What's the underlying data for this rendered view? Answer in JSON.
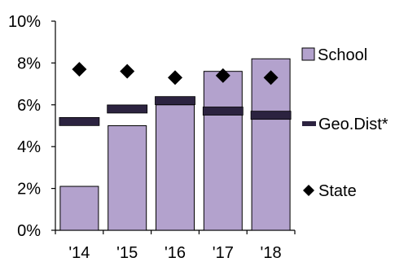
{
  "chart_data": {
    "type": "bar",
    "categories": [
      "'14",
      "'15",
      "'16",
      "'17",
      "'18"
    ],
    "ylim": [
      0,
      10
    ],
    "yticks": [
      "0%",
      "2%",
      "4%",
      "6%",
      "8%",
      "10%"
    ],
    "ytick_values": [
      0,
      2,
      4,
      6,
      8,
      10
    ],
    "grid": false,
    "legend_position": "right",
    "series": [
      {
        "name": "School",
        "kind": "bar",
        "color": "#b3a2cd",
        "values": [
          2.1,
          5.0,
          6.0,
          7.6,
          8.2
        ]
      },
      {
        "name": "Geo.Dist*",
        "kind": "dash",
        "color": "#2c2340",
        "values": [
          5.2,
          5.8,
          6.2,
          5.7,
          5.5
        ]
      },
      {
        "name": "State",
        "kind": "diamond",
        "color": "#000000",
        "values": [
          7.7,
          7.6,
          7.3,
          7.4,
          7.3
        ]
      }
    ]
  }
}
